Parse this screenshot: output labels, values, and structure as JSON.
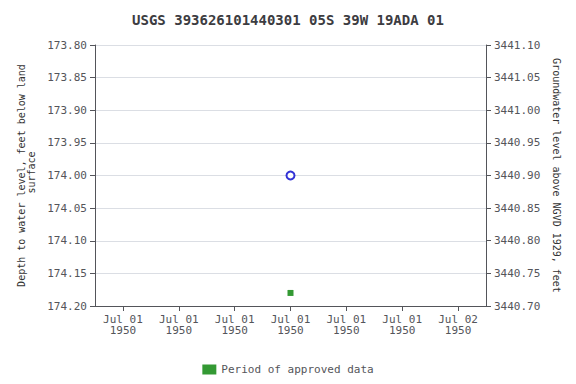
{
  "chart_data": {
    "type": "scatter",
    "title": "USGS 393626101440301 05S 39W 19ADA 01",
    "categories": [
      "Jul 01\n1950",
      "Jul 01\n1950",
      "Jul 01\n1950",
      "Jul 01\n1950",
      "Jul 01\n1950",
      "Jul 01\n1950",
      "Jul 02\n1950"
    ],
    "series": [
      {
        "color": "#0000cc",
        "marker": "open_circle",
        "values": [
          null,
          null,
          null,
          174.0,
          null,
          null,
          null
        ]
      },
      {
        "name": "Period of approved data",
        "color": "#008000",
        "marker": "square",
        "values": [
          null,
          null,
          null,
          174.18,
          null,
          null,
          null
        ]
      }
    ],
    "ylabel": "Depth to water level, feet below land\n surface",
    "y2label": "Groundwater level above NGVD 1929, feet",
    "ylim": [
      174.2,
      173.8
    ],
    "yticks": [
      {
        "value": 173.8,
        "label": "173.80"
      },
      173.85,
      {
        "value": 173.9,
        "label": "173.90"
      },
      173.95,
      {
        "value": 174.0,
        "label": "174.00"
      },
      174.05,
      {
        "value": 174.1,
        "label": "174.10"
      },
      174.15,
      {
        "value": 174.2,
        "label": "174.20"
      }
    ],
    "y2lim": [
      3440.7,
      3441.1
    ],
    "y2ticks": [
      {
        "value": 3440.7,
        "label": "3440.70"
      },
      3440.75,
      {
        "value": 3440.8,
        "label": "3440.80"
      },
      3440.85,
      {
        "value": 3440.9,
        "label": "3440.90"
      },
      3440.95,
      {
        "value": 3441.0,
        "label": "3441.00"
      },
      3441.05,
      {
        "value": 3441.1,
        "label": "3441.10"
      }
    ],
    "grid": true,
    "legend": "bottom"
  }
}
